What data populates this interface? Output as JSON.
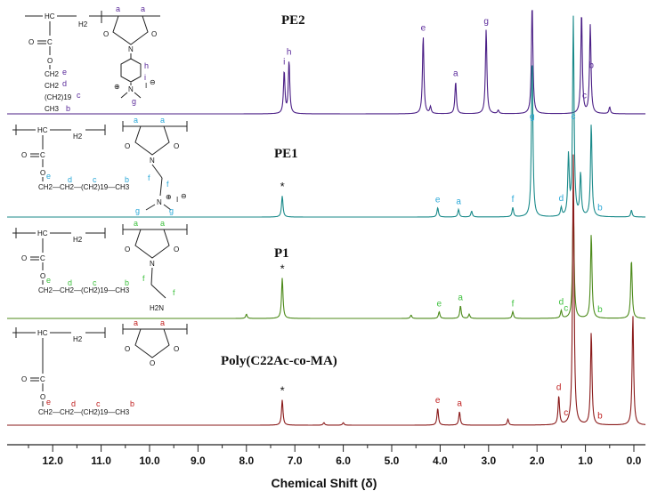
{
  "chart_data": {
    "type": "line",
    "title": "",
    "xlabel": "Chemical Shift (δ)",
    "ylabel": "",
    "x_axis_reversed": true,
    "xlim": [
      12.6,
      -0.15
    ],
    "x_ticks": [
      "12.0",
      "11.0",
      "10.0",
      "9.0",
      "8.0",
      "7.0",
      "6.0",
      "5.0",
      "4.0",
      "3.0",
      "2.0",
      "1.0",
      "0.0"
    ],
    "x_tick_values": [
      12,
      11,
      10,
      9,
      8,
      7,
      6,
      5,
      4,
      3,
      2,
      1,
      0
    ],
    "series": [
      {
        "name": "PE2",
        "color": "#4b1f86",
        "peaks": [
          {
            "x": 7.22,
            "h": 50
          },
          {
            "x": 7.12,
            "h": 62
          },
          {
            "x": 4.35,
            "h": 92
          },
          {
            "x": 4.2,
            "h": 8
          },
          {
            "x": 3.68,
            "h": 38
          },
          {
            "x": 3.05,
            "h": 100
          },
          {
            "x": 2.8,
            "h": 4
          },
          {
            "x": 2.1,
            "h": 130
          },
          {
            "x": 1.08,
            "h": 120
          },
          {
            "x": 0.9,
            "h": 105
          },
          {
            "x": 0.5,
            "h": 8
          }
        ],
        "labels": [
          {
            "text": "i",
            "x": 7.22
          },
          {
            "text": "h",
            "x": 7.12
          },
          {
            "text": "e",
            "x": 4.35
          },
          {
            "text": "a",
            "x": 3.68
          },
          {
            "text": "g",
            "x": 3.05
          },
          {
            "text": "c",
            "x": 1.02
          },
          {
            "text": "b",
            "x": 0.88
          }
        ]
      },
      {
        "name": "PE1",
        "color": "#1a8a8a",
        "peaks": [
          {
            "x": 7.26,
            "h": 25
          },
          {
            "x": 4.05,
            "h": 11
          },
          {
            "x": 3.62,
            "h": 9
          },
          {
            "x": 3.35,
            "h": 7
          },
          {
            "x": 2.5,
            "h": 11
          },
          {
            "x": 2.1,
            "h": 190
          },
          {
            "x": 1.5,
            "h": 10
          },
          {
            "x": 1.35,
            "h": 70
          },
          {
            "x": 1.25,
            "h": 235
          },
          {
            "x": 1.1,
            "h": 50
          },
          {
            "x": 0.88,
            "h": 110
          },
          {
            "x": 0.05,
            "h": 8
          }
        ],
        "labels": [
          {
            "text": "*",
            "x": 7.26
          },
          {
            "text": "e",
            "x": 4.05
          },
          {
            "text": "a",
            "x": 3.62
          },
          {
            "text": "f",
            "x": 2.5
          },
          {
            "text": "g",
            "x": 2.1
          },
          {
            "text": "d",
            "x": 1.5
          },
          {
            "text": "c",
            "x": 1.25
          },
          {
            "text": "b",
            "x": 0.7
          }
        ]
      },
      {
        "name": "P1",
        "color": "#4c8a1a",
        "peaks": [
          {
            "x": 8.0,
            "h": 5
          },
          {
            "x": 7.26,
            "h": 48
          },
          {
            "x": 4.6,
            "h": 4
          },
          {
            "x": 4.02,
            "h": 8
          },
          {
            "x": 3.58,
            "h": 15
          },
          {
            "x": 3.4,
            "h": 5
          },
          {
            "x": 2.5,
            "h": 8
          },
          {
            "x": 1.5,
            "h": 9
          },
          {
            "x": 1.25,
            "h": 140
          },
          {
            "x": 0.88,
            "h": 100
          },
          {
            "x": 0.05,
            "h": 70
          }
        ],
        "labels": [
          {
            "text": "*",
            "x": 7.26
          },
          {
            "text": "e",
            "x": 4.02
          },
          {
            "text": "a",
            "x": 3.58
          },
          {
            "text": "f",
            "x": 2.5
          },
          {
            "text": "d",
            "x": 1.5
          },
          {
            "text": "c",
            "x": 1.4
          },
          {
            "text": "b",
            "x": 0.7
          }
        ]
      },
      {
        "name": "Poly(C22Ac-co-MA)",
        "color": "#8a1a1a",
        "peaks": [
          {
            "x": 7.26,
            "h": 30
          },
          {
            "x": 6.4,
            "h": 3
          },
          {
            "x": 6.0,
            "h": 3
          },
          {
            "x": 4.05,
            "h": 20
          },
          {
            "x": 3.6,
            "h": 16
          },
          {
            "x": 2.6,
            "h": 7
          },
          {
            "x": 1.55,
            "h": 34
          },
          {
            "x": 1.25,
            "h": 320
          },
          {
            "x": 0.88,
            "h": 110
          },
          {
            "x": 0.02,
            "h": 130
          }
        ],
        "labels": [
          {
            "text": "*",
            "x": 7.26
          },
          {
            "text": "e",
            "x": 4.05
          },
          {
            "text": "a",
            "x": 3.6
          },
          {
            "text": "d",
            "x": 1.55
          },
          {
            "text": "c",
            "x": 1.4
          },
          {
            "text": "b",
            "x": 0.7
          }
        ]
      }
    ]
  },
  "structures": {
    "pe2": {
      "hc": "HC",
      "h2": "H2",
      "o1": "O",
      "o2": "O",
      "o3": "O",
      "o4": "O",
      "c": "C",
      "ch2e": "CH2",
      "ch2d": "CH2",
      "chain": "(CH2)19",
      "ch3": "CH3",
      "n": "N",
      "nplus": "N",
      "plus": "⊕",
      "minus": "⊖",
      "i": "I",
      "labels": [
        "a",
        "a",
        "e",
        "d",
        "c",
        "b",
        "h",
        "i",
        "g"
      ]
    },
    "pe1": {
      "hc": "HC",
      "h2": "H2",
      "o1": "O",
      "o2": "O",
      "o3": "O",
      "o4": "O",
      "c": "C",
      "chain_row": "CH2—CH2—(CH2)19—CH3",
      "n": "N",
      "nplus": "N",
      "plus": "⊕",
      "minus": "⊖",
      "i": "I",
      "labels": [
        "a",
        "a",
        "e",
        "d",
        "c",
        "b",
        "f",
        "f",
        "g",
        "g"
      ]
    },
    "p1": {
      "hc": "HC",
      "h2": "H2",
      "o1": "O",
      "o2": "O",
      "o3": "O",
      "o4": "O",
      "c": "C",
      "chain_row": "CH2—CH2—(CH2)19—CH3",
      "n": "N",
      "h2n": "H2N",
      "labels": [
        "a",
        "a",
        "e",
        "d",
        "c",
        "b",
        "f",
        "f"
      ]
    },
    "pma": {
      "hc": "HC",
      "h2": "H2",
      "o1": "O",
      "o2": "O",
      "o3": "O",
      "o4": "O",
      "o5": "O",
      "c": "C",
      "chain_row": "CH2—CH2—(CH2)19—CH3",
      "labels": [
        "a",
        "a",
        "e",
        "d",
        "c",
        "b"
      ]
    }
  }
}
